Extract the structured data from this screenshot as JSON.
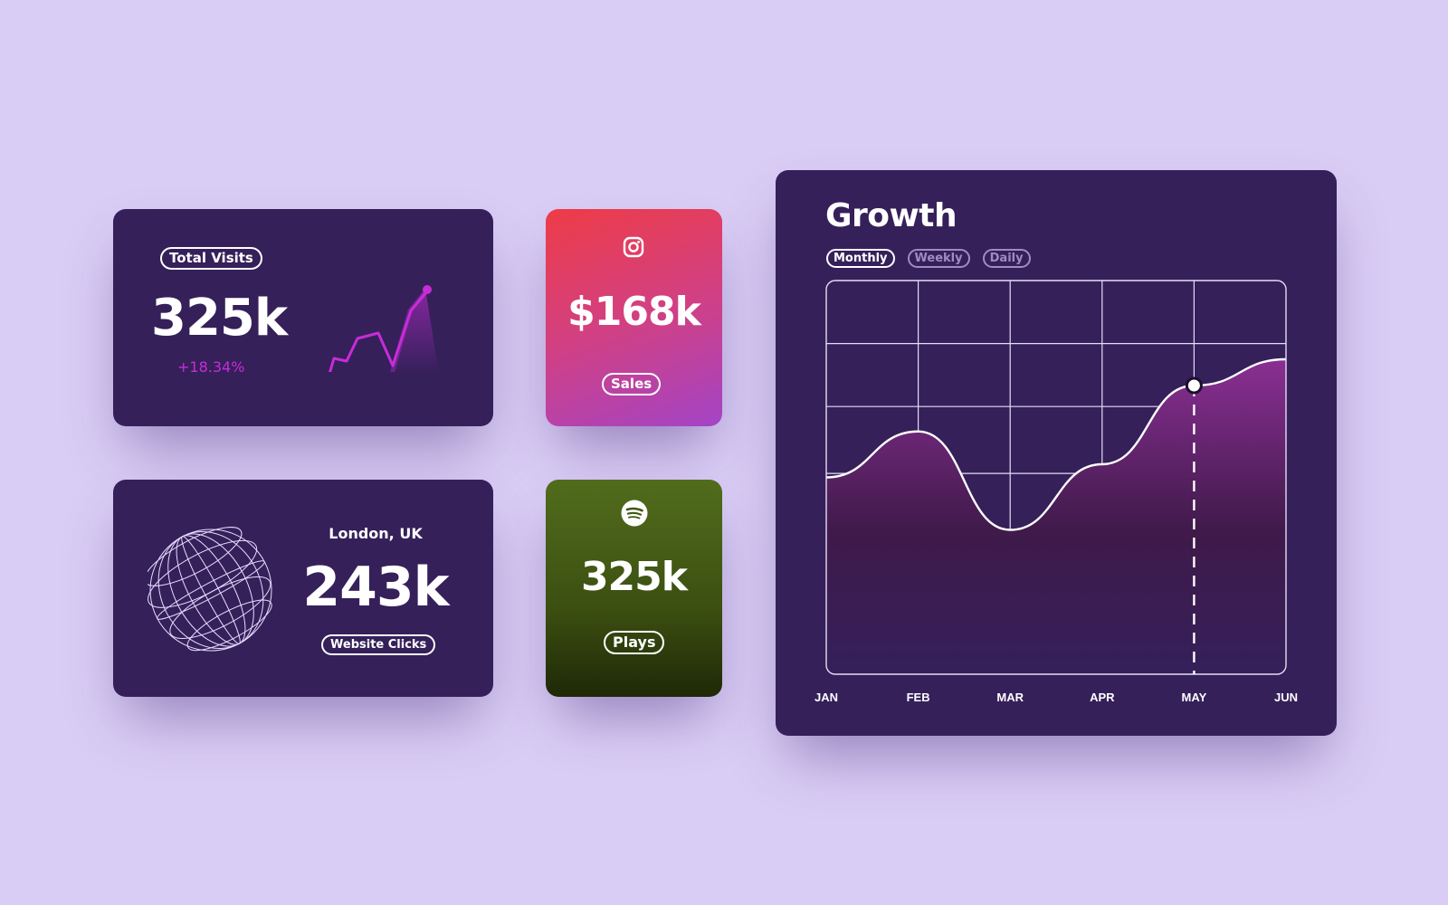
{
  "total_visits": {
    "label": "Total Visits",
    "value": "325k",
    "change": "+18.34%",
    "sparkline_icon": "trend-line-chart"
  },
  "website_clicks": {
    "location": "London, UK",
    "value": "243k",
    "label": "Website Clicks",
    "graphic": "wireframe-globe-icon"
  },
  "sales": {
    "icon": "instagram-icon",
    "value": "$168k",
    "label": "Sales"
  },
  "plays": {
    "icon": "spotify-icon",
    "value": "325k",
    "label": "Plays"
  },
  "growth": {
    "title": "Growth",
    "tabs": [
      {
        "label": "Monthly",
        "active": true
      },
      {
        "label": "Weekly",
        "active": false
      },
      {
        "label": "Daily",
        "active": false
      }
    ],
    "highlighted_month": "MAY"
  },
  "chart_data": {
    "type": "area",
    "categories": [
      "JAN",
      "FEB",
      "MAR",
      "APR",
      "MAY",
      "JUN"
    ],
    "values": [
      3.0,
      3.7,
      2.2,
      3.2,
      4.4,
      4.8
    ],
    "ylim": [
      0,
      6
    ],
    "grid": true,
    "colors": {
      "line": "#ffffff",
      "fill": "#7a2a86",
      "background": "#35205a"
    }
  },
  "colors": {
    "page_background": "#d9cdf5",
    "card_dark": "#35205a",
    "accent_magenta": "#c82cd9",
    "sales_gradient": [
      "#ee3c46",
      "#a344c6"
    ],
    "plays_gradient": [
      "#516c1c",
      "#1f2806"
    ]
  }
}
